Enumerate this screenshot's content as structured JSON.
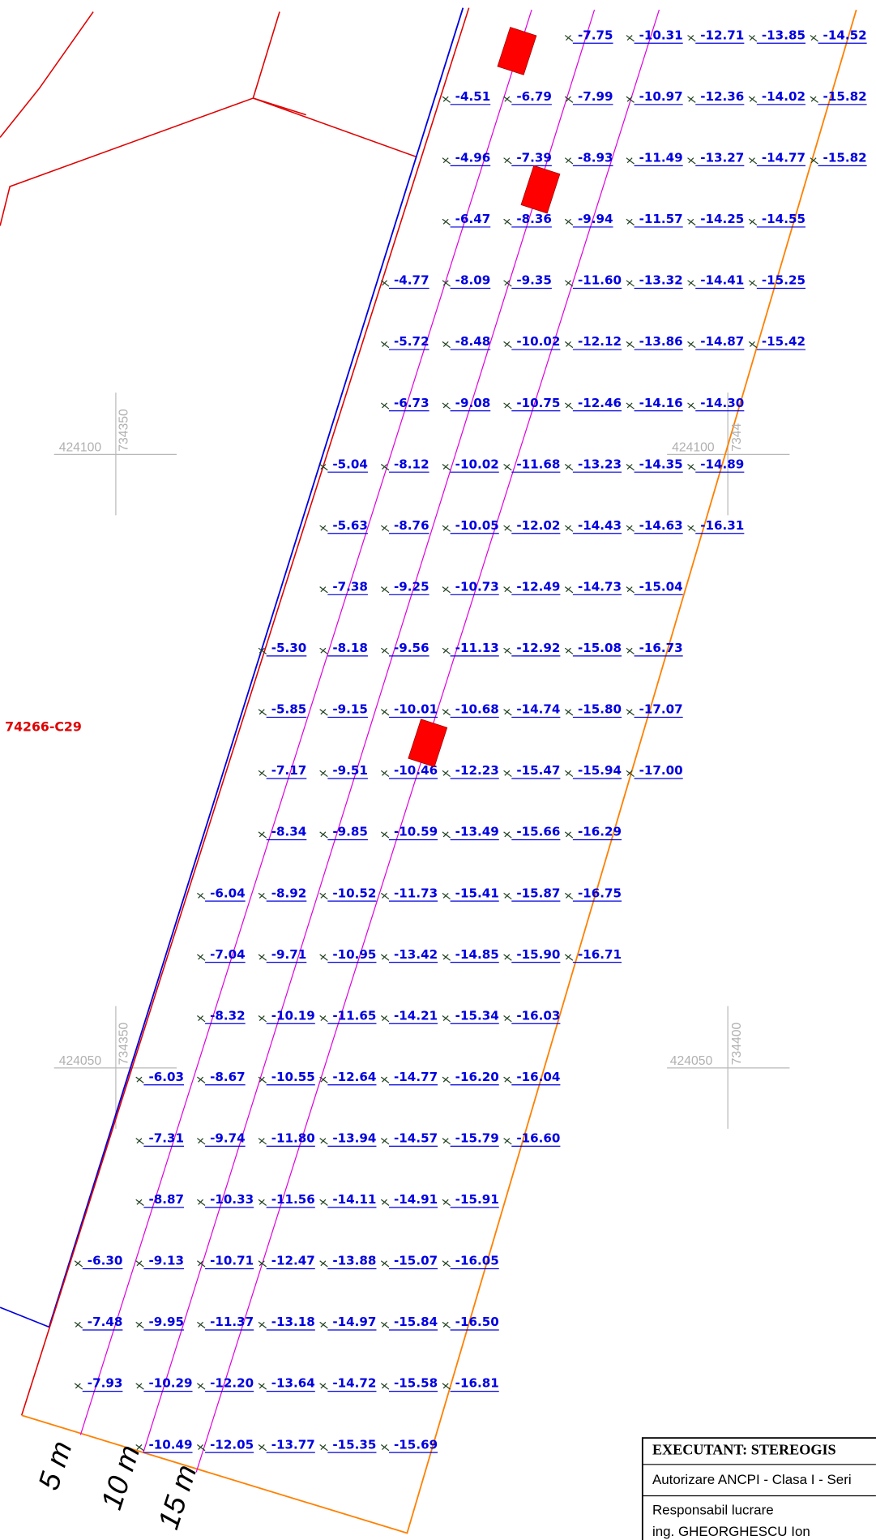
{
  "elevations": [
    [
      "-7.75",
      "-10.31",
      "-12.71",
      "-13.85",
      "-14.52"
    ],
    [
      "-4.51",
      "-6.79",
      "-7.99",
      "-10.97",
      "-12.36",
      "-14.02",
      "-15.82"
    ],
    [
      "-4.96",
      "-7.39",
      "-8.93",
      "-11.49",
      "-13.27",
      "-14.77",
      "-15.82"
    ],
    [
      "-6.47",
      "-8.36",
      "-9.94",
      "-11.57",
      "-14.25",
      "-14.55"
    ],
    [
      "-4.77",
      "-8.09",
      "-9.35",
      "-11.60",
      "-13.32",
      "-14.41",
      "-15.25"
    ],
    [
      "-5.72",
      "-8.48",
      "-10.02",
      "-12.12",
      "-13.86",
      "-14.87",
      "-15.42"
    ],
    [
      "-6.73",
      "-9.08",
      "-10.75",
      "-12.46",
      "-14.16",
      "-14.30"
    ],
    [
      "-5.04",
      "-8.12",
      "-10.02",
      "-11.68",
      "-13.23",
      "-14.35",
      "-14.89"
    ],
    [
      "-5.63",
      "-8.76",
      "-10.05",
      "-12.02",
      "-14.43",
      "-14.63",
      "-16.31"
    ],
    [
      "-7.38",
      "-9.25",
      "-10.73",
      "-12.49",
      "-14.73",
      "-15.04"
    ],
    [
      "-5.30",
      "-8.18",
      "-9.56",
      "-11.13",
      "-12.92",
      "-15.08",
      "-16.73"
    ],
    [
      "-5.85",
      "-9.15",
      "-10.01",
      "-10.68",
      "-14.74",
      "-15.80",
      "-17.07"
    ],
    [
      "-7.17",
      "-9.51",
      "-10.46",
      "-12.23",
      "-15.47",
      "-15.94",
      "-17.00"
    ],
    [
      "-8.34",
      "-9.85",
      "-10.59",
      "-13.49",
      "-15.66",
      "-16.29"
    ],
    [
      "-6.04",
      "-8.92",
      "-10.52",
      "-11.73",
      "-15.41",
      "-15.87",
      "-16.75"
    ],
    [
      "-7.04",
      "-9.71",
      "-10.95",
      "-13.42",
      "-14.85",
      "-15.90",
      "-16.71"
    ],
    [
      "-8.32",
      "-10.19",
      "-11.65",
      "-14.21",
      "-15.34",
      "-16.03"
    ],
    [
      "-6.03",
      "-8.67",
      "-10.55",
      "-12.64",
      "-14.77",
      "-16.20",
      "-16.04"
    ],
    [
      "-7.31",
      "-9.74",
      "-11.80",
      "-13.94",
      "-14.57",
      "-15.79",
      "-16.60"
    ],
    [
      "-8.87",
      "-10.33",
      "-11.56",
      "-14.11",
      "-14.91",
      "-15.91"
    ],
    [
      "-6.30",
      "-9.13",
      "-10.71",
      "-12.47",
      "-13.88",
      "-15.07",
      "-16.05"
    ],
    [
      "-7.48",
      "-9.95",
      "-11.37",
      "-13.18",
      "-14.97",
      "-15.84",
      "-16.50"
    ],
    [
      "-7.93",
      "-10.29",
      "-12.20",
      "-13.64",
      "-14.72",
      "-15.58",
      "-16.81"
    ],
    [
      "-10.49",
      "-12.05",
      "-13.77",
      "-15.35",
      "-15.69"
    ]
  ],
  "parcel_label": "74266-C29",
  "grid_marks": [
    {
      "east": "424100",
      "north": "734350"
    },
    {
      "east": "424100",
      "north": "7344"
    },
    {
      "east": "424050",
      "north": "734350"
    },
    {
      "east": "424050",
      "north": "734400"
    }
  ],
  "offset_labels": [
    "5 m",
    "10 m",
    "15 m"
  ],
  "title_block": {
    "executant": "EXECUTANT: STEREOGIS",
    "authorization": "Autorizare ANCPI - Clasa I - Seri",
    "responsible": "Responsabil lucrare",
    "engineer": "ing. GHEORGHESCU Ion"
  }
}
